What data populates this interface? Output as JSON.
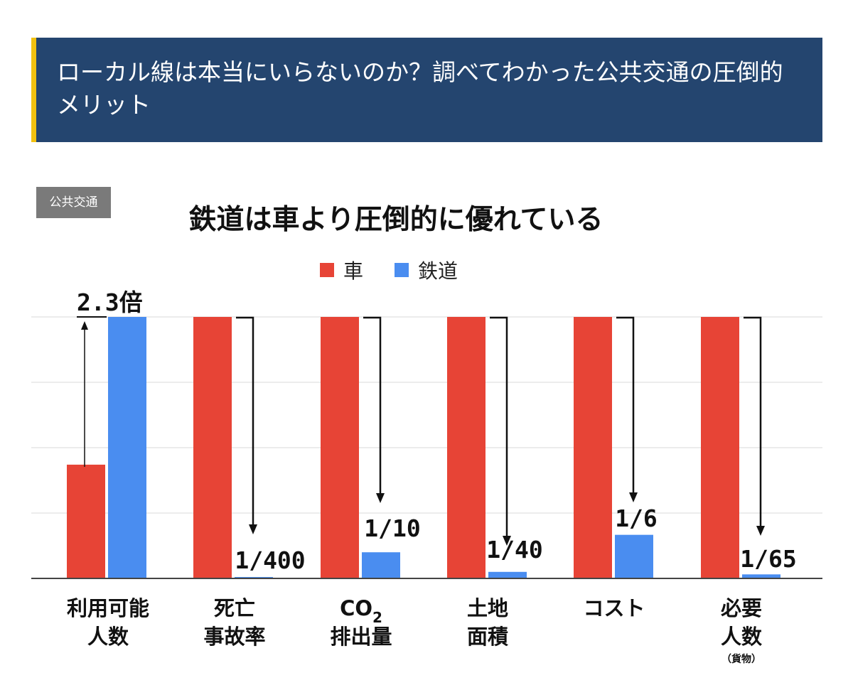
{
  "header": {
    "title": "ローカル線は本当にいらないのか？調べてわかった公共交通の圧倒的メリット"
  },
  "tag": {
    "label": "公共交通"
  },
  "chart_data": {
    "type": "bar",
    "title": "鉄道は車より圧倒的に優れている",
    "categories": [
      {
        "lines": [
          "利用可能",
          "人数"
        ],
        "note": ""
      },
      {
        "lines": [
          "死亡",
          "事故率"
        ],
        "note": ""
      },
      {
        "lines": [
          "CO2",
          "排出量"
        ],
        "note": ""
      },
      {
        "lines": [
          "土地",
          "面積"
        ],
        "note": ""
      },
      {
        "lines": [
          "コスト"
        ],
        "note": ""
      },
      {
        "lines": [
          "必要",
          "人数"
        ],
        "note": "（貨物）"
      }
    ],
    "series": [
      {
        "name": "車",
        "color": "#e74436",
        "values": [
          0.435,
          1,
          1,
          1,
          1,
          1
        ]
      },
      {
        "name": "鉄道",
        "color": "#4a8df0",
        "values": [
          1,
          0.0025,
          0.1,
          0.025,
          0.1667,
          0.0154
        ]
      }
    ],
    "annotations": [
      "2.3倍",
      "1/400",
      "1/10",
      "1/40",
      "1/6",
      "1/65"
    ],
    "ylim": [
      0,
      1
    ],
    "grid": true,
    "legend_position": "top-center"
  }
}
